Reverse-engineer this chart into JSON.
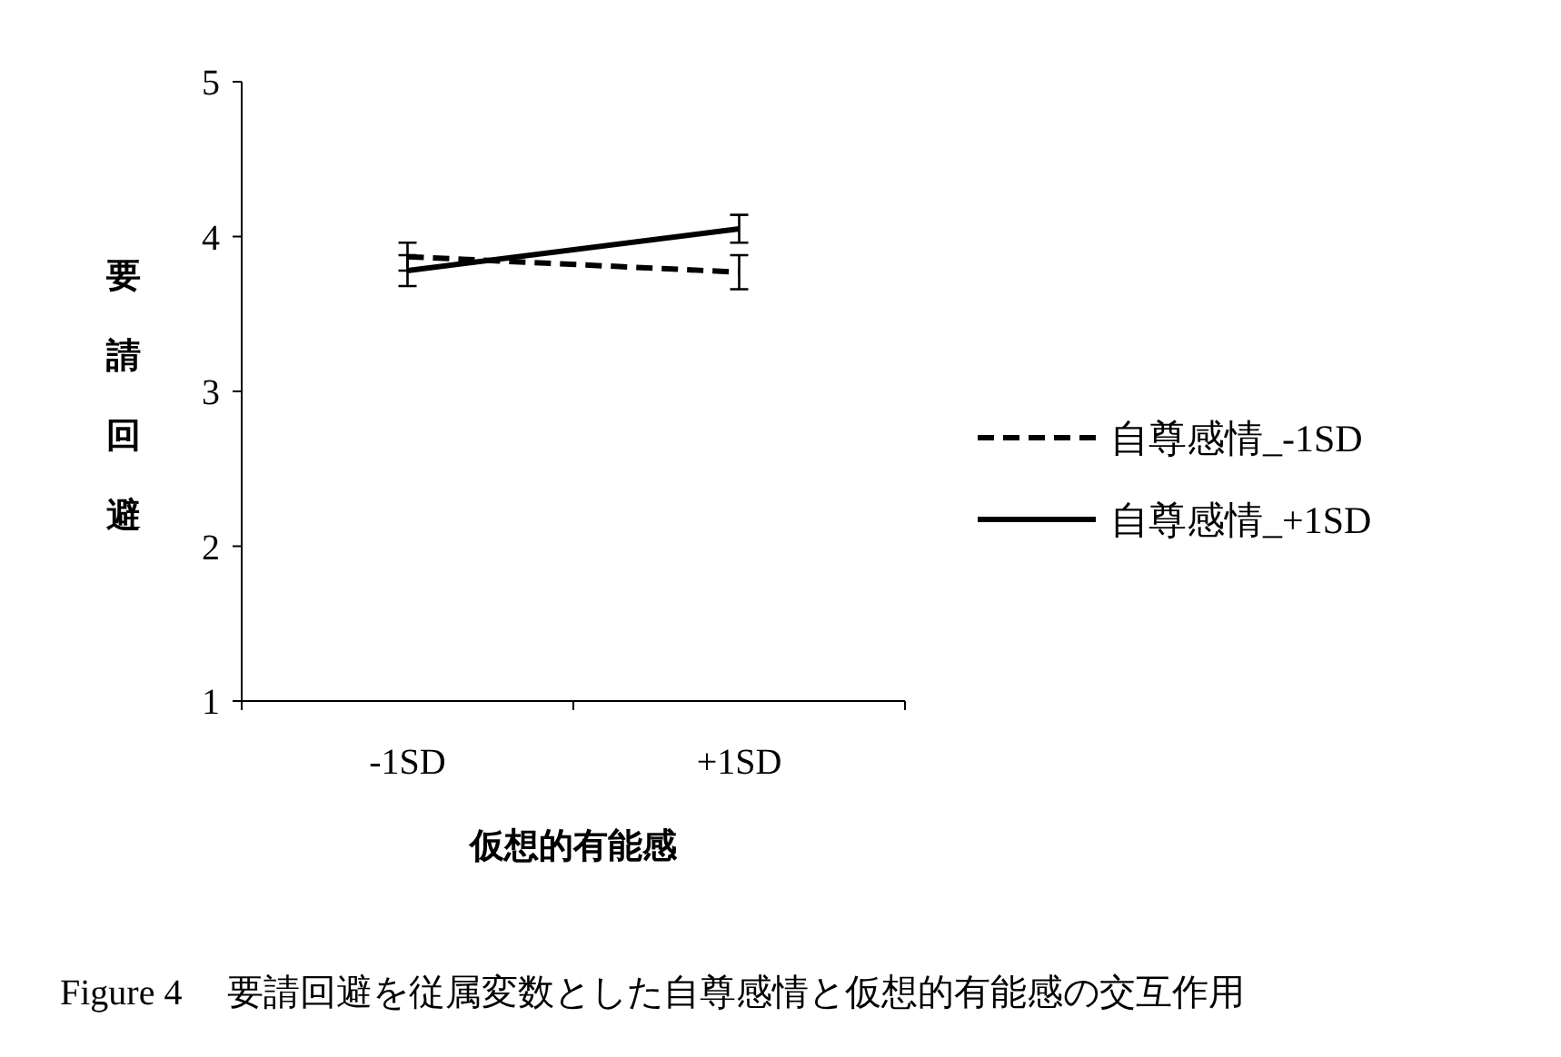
{
  "chart_data": {
    "type": "line",
    "categories": [
      "-1SD",
      "+1SD"
    ],
    "xlabel": "仮想的有能感",
    "ylabel": "要請回避",
    "ylim": [
      1,
      5
    ],
    "yticks": [
      1,
      2,
      3,
      4,
      5
    ],
    "grid": false,
    "legend": "right",
    "series": [
      {
        "name": "自尊感情_-1SD",
        "color": "#000000",
        "line_style": "dashed",
        "values": [
          3.87,
          3.77
        ],
        "errors": [
          0.09,
          0.11
        ]
      },
      {
        "name": "自尊感情_+1SD",
        "color": "#000000",
        "line_style": "solid",
        "values": [
          3.78,
          4.05
        ],
        "errors": [
          0.1,
          0.09
        ]
      }
    ],
    "annotations": [
      "Figure 4　 要請回避を従属変数とした自尊感情と仮想的有能感の交互作用"
    ]
  }
}
